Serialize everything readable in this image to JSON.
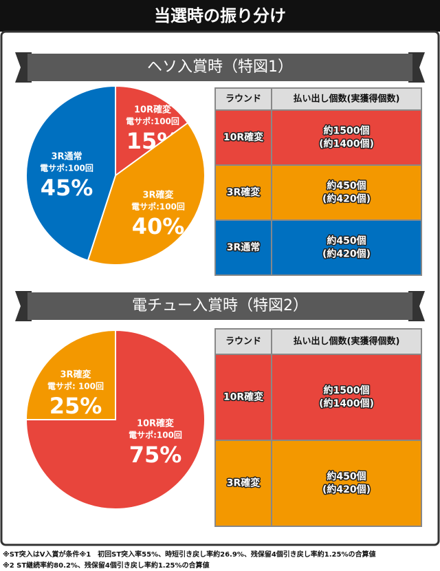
{
  "title": "当選時の振り分け",
  "sections": [
    {
      "heading": "ヘソ入賞時（特図1）",
      "table": {
        "header": [
          "ラウンド",
          "払い出し個数(実獲得個数)"
        ],
        "rows": [
          {
            "round": "10R確変",
            "payout": [
              "約1500個",
              "(約1400個)"
            ],
            "color": "#e8453c"
          },
          {
            "round": "3R確変",
            "payout": [
              "約450個",
              "(約420個)"
            ],
            "color": "#f39800"
          },
          {
            "round": "3R通常",
            "payout": [
              "約450個",
              "(約420個)"
            ],
            "color": "#0070c0"
          }
        ]
      }
    },
    {
      "heading": "電チュー入賞時（特図2）",
      "table": {
        "header": [
          "ラウンド",
          "払い出し個数(実獲得個数)"
        ],
        "rows": [
          {
            "round": "10R確変",
            "payout": [
              "約1500個",
              "(約1400個)"
            ],
            "color": "#e8453c"
          },
          {
            "round": "3R確変",
            "payout": [
              "約450個",
              "(約420個)"
            ],
            "color": "#f39800"
          }
        ]
      }
    }
  ],
  "chart_data": [
    {
      "type": "pie",
      "categories": [
        "10R確変",
        "3R確変",
        "3R通常"
      ],
      "sublabels": [
        "電サポ:100回",
        "電サポ:100回",
        "電サポ:100回"
      ],
      "values": [
        15,
        40,
        45
      ],
      "value_labels": [
        "15%",
        "40%",
        "45%"
      ],
      "colors": [
        "#e8453c",
        "#f39800",
        "#0070c0"
      ]
    },
    {
      "type": "pie",
      "categories": [
        "10R確変",
        "3R確変"
      ],
      "sublabels": [
        "電サポ:100回",
        "電サポ: 100回"
      ],
      "values": [
        75,
        25
      ],
      "value_labels": [
        "75%",
        "25%"
      ],
      "colors": [
        "#e8453c",
        "#f39800"
      ]
    }
  ],
  "notes": [
    "※ST突入はV入賞が条件※1　初回ST突入率55%、時短引き戻し率約26.9%、残保留4個引き戻し率約1.25%の合算値",
    "※2 ST継続率約80.2%、残保留4個引き戻し率約1.25%の合算値"
  ]
}
